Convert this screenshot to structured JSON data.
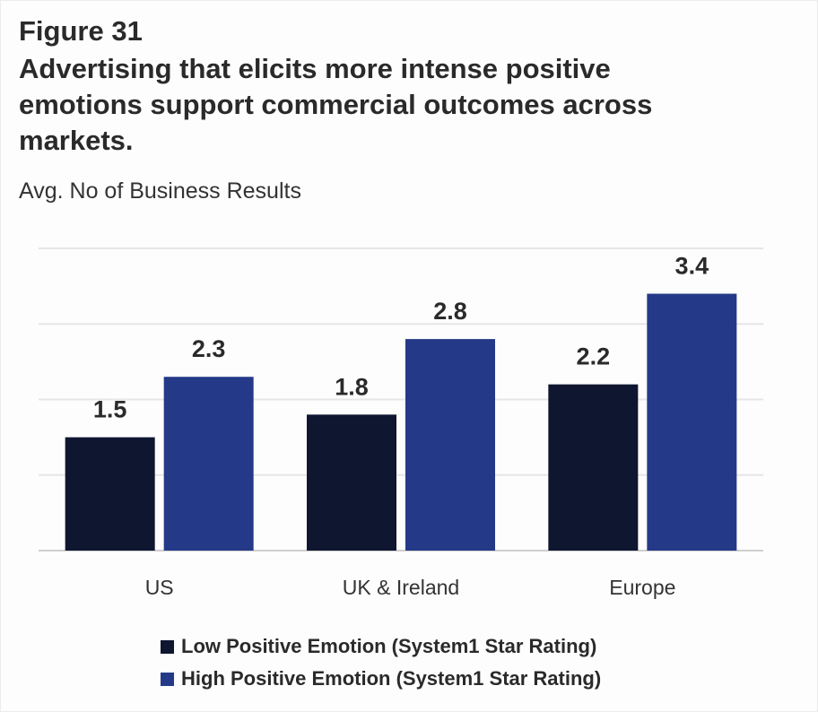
{
  "figure": {
    "label": "Figure 31",
    "title": "Advertising that elicits more intense positive emotions support commercial outcomes across markets."
  },
  "chart_data": {
    "type": "bar",
    "title": "Advertising that elicits more intense positive emotions support commercial outcomes across markets.",
    "ylabel": "Avg. No of Business Results",
    "xlabel": "",
    "categories": [
      "US",
      "UK & Ireland",
      "Europe"
    ],
    "series": [
      {
        "name": "Low Positive Emotion (System1 Star Rating)",
        "color": "#0f1630",
        "values": [
          1.5,
          1.8,
          2.2
        ]
      },
      {
        "name": "High Positive Emotion (System1 Star Rating)",
        "color": "#243a88",
        "values": [
          2.3,
          2.8,
          3.4
        ]
      }
    ],
    "ylim": [
      0,
      4
    ],
    "gridlines": [
      1,
      2,
      3,
      4
    ],
    "grid": true,
    "legend_position": "bottom",
    "data_labels": [
      "1.5",
      "2.3",
      "1.8",
      "2.8",
      "2.2",
      "3.4"
    ]
  }
}
